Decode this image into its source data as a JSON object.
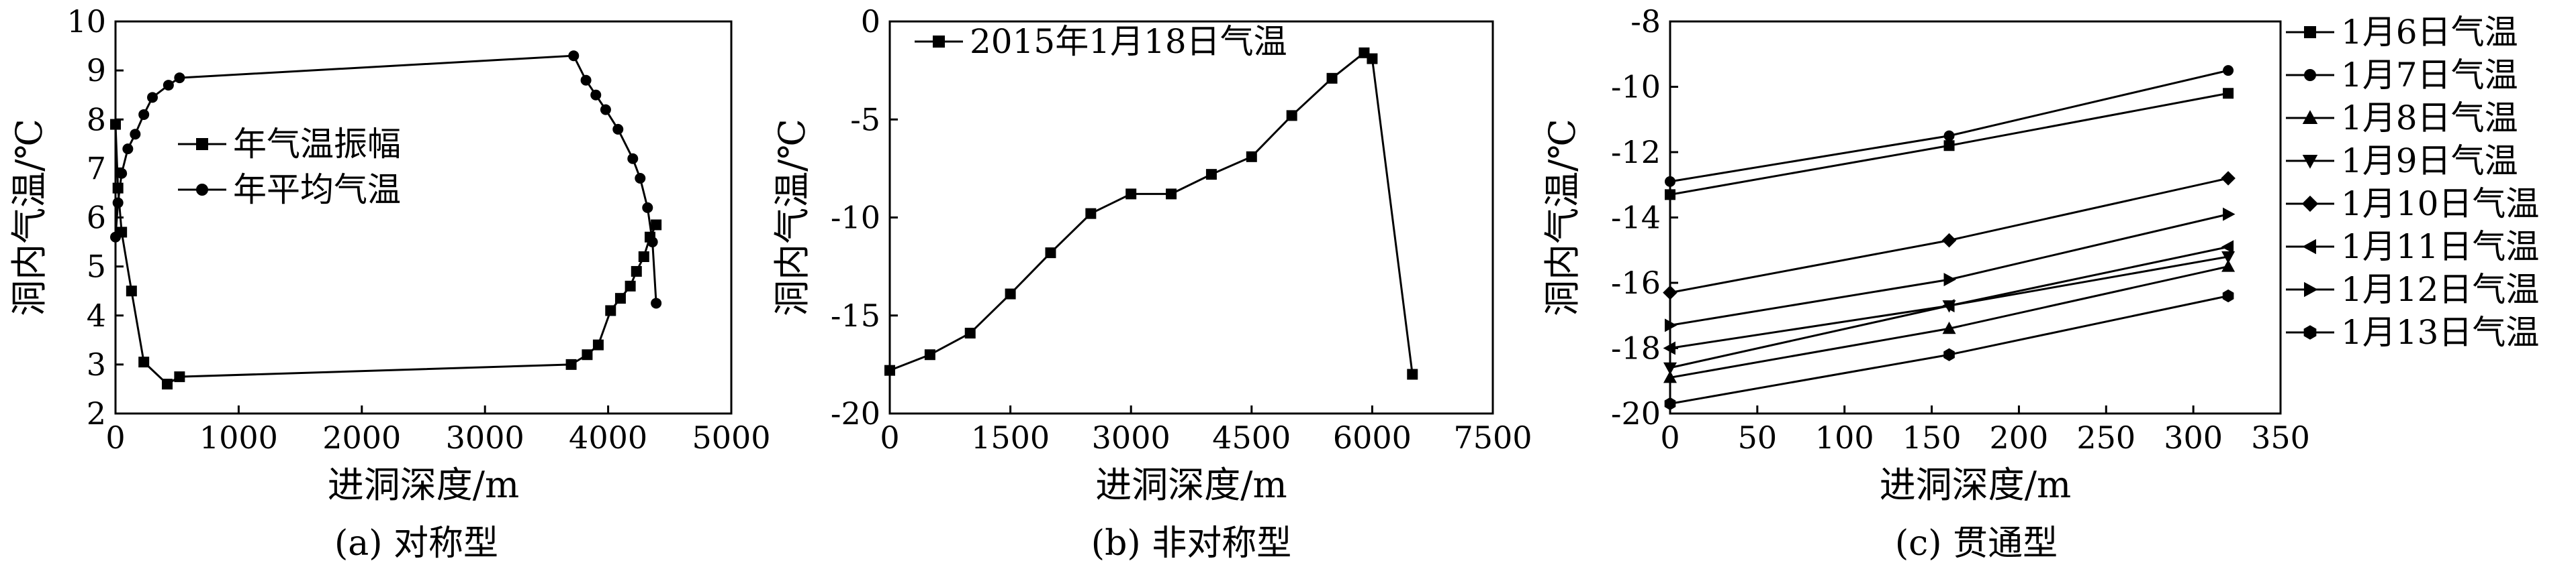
{
  "chart_data": [
    {
      "type": "line",
      "caption": "(a) 对称型",
      "xlabel": "进洞深度/m",
      "ylabel": "洞内气温/℃",
      "xlim": [
        0,
        5000
      ],
      "ylim": [
        2,
        10
      ],
      "xticks": [
        0,
        1000,
        2000,
        3000,
        4000,
        5000
      ],
      "yticks": [
        2,
        3,
        4,
        5,
        6,
        7,
        8,
        9,
        10
      ],
      "grid": false,
      "legend_position": "left-middle",
      "series": [
        {
          "name": "年气温振幅",
          "marker": "square",
          "points": [
            [
              0,
              7.9
            ],
            [
              20,
              6.6
            ],
            [
              50,
              5.7
            ],
            [
              130,
              4.5
            ],
            [
              230,
              3.05
            ],
            [
              420,
              2.6
            ],
            [
              520,
              2.75
            ],
            [
              3700,
              3.0
            ],
            [
              3830,
              3.2
            ],
            [
              3920,
              3.4
            ],
            [
              4020,
              4.1
            ],
            [
              4100,
              4.35
            ],
            [
              4180,
              4.6
            ],
            [
              4230,
              4.9
            ],
            [
              4290,
              5.2
            ],
            [
              4340,
              5.6
            ],
            [
              4390,
              5.85
            ]
          ]
        },
        {
          "name": "年平均气温",
          "marker": "circle",
          "points": [
            [
              4390,
              4.25
            ],
            [
              4360,
              5.5
            ],
            [
              4320,
              6.2
            ],
            [
              4260,
              6.8
            ],
            [
              4200,
              7.2
            ],
            [
              4080,
              7.8
            ],
            [
              3980,
              8.2
            ],
            [
              3900,
              8.5
            ],
            [
              3820,
              8.8
            ],
            [
              3720,
              9.3
            ],
            [
              520,
              8.85
            ],
            [
              430,
              8.7
            ],
            [
              300,
              8.45
            ],
            [
              230,
              8.1
            ],
            [
              160,
              7.7
            ],
            [
              100,
              7.4
            ],
            [
              50,
              6.9
            ],
            [
              20,
              6.3
            ],
            [
              0,
              5.6
            ]
          ]
        }
      ]
    },
    {
      "type": "line",
      "caption": "(b) 非对称型",
      "xlabel": "进洞深度/m",
      "ylabel": "洞内气温/℃",
      "xlim": [
        0,
        7500
      ],
      "ylim": [
        -20,
        0
      ],
      "xticks": [
        0,
        1500,
        3000,
        4500,
        6000,
        7500
      ],
      "yticks": [
        -20,
        -15,
        -10,
        -5,
        0
      ],
      "grid": false,
      "legend_position": "top-left",
      "series": [
        {
          "name": "2015年1月18日气温",
          "marker": "square",
          "points": [
            [
              0,
              -17.8
            ],
            [
              500,
              -17.0
            ],
            [
              1000,
              -15.9
            ],
            [
              1500,
              -13.9
            ],
            [
              2000,
              -11.8
            ],
            [
              2500,
              -9.8
            ],
            [
              3000,
              -8.8
            ],
            [
              3500,
              -8.8
            ],
            [
              4000,
              -7.8
            ],
            [
              4500,
              -6.9
            ],
            [
              5000,
              -4.8
            ],
            [
              5500,
              -2.9
            ],
            [
              5900,
              -1.6
            ],
            [
              6000,
              -1.9
            ],
            [
              6500,
              -18.0
            ]
          ]
        }
      ]
    },
    {
      "type": "line",
      "caption": "(c) 贯通型",
      "xlabel": "进洞深度/m",
      "ylabel": "洞内气温/℃",
      "xlim": [
        0,
        350
      ],
      "ylim": [
        -20,
        -8
      ],
      "xticks": [
        0,
        50,
        100,
        150,
        200,
        250,
        300,
        350
      ],
      "yticks": [
        -20,
        -18,
        -16,
        -14,
        -12,
        -10,
        -8
      ],
      "grid": false,
      "legend_position": "right-outside",
      "x": [
        0,
        160,
        320
      ],
      "series": [
        {
          "name": "1月6日气温",
          "marker": "square",
          "values": [
            -13.3,
            -11.8,
            -10.2
          ]
        },
        {
          "name": "1月7日气温",
          "marker": "circle",
          "values": [
            -12.9,
            -11.5,
            -9.5
          ]
        },
        {
          "name": "1月8日气温",
          "marker": "triangle-up",
          "values": [
            -18.9,
            -17.4,
            -15.5
          ]
        },
        {
          "name": "1月9日气温",
          "marker": "triangle-down",
          "values": [
            -18.6,
            -16.7,
            -15.2
          ]
        },
        {
          "name": "1月10日气温",
          "marker": "diamond",
          "values": [
            -16.3,
            -14.7,
            -12.8
          ]
        },
        {
          "name": "1月11日气温",
          "marker": "triangle-left",
          "values": [
            -18.0,
            -16.7,
            -14.9
          ]
        },
        {
          "name": "1月12日气温",
          "marker": "triangle-right",
          "values": [
            -17.3,
            -15.9,
            -13.9
          ]
        },
        {
          "name": "1月13日气温",
          "marker": "hexagon",
          "values": [
            -19.7,
            -18.2,
            -16.4
          ]
        }
      ]
    }
  ]
}
